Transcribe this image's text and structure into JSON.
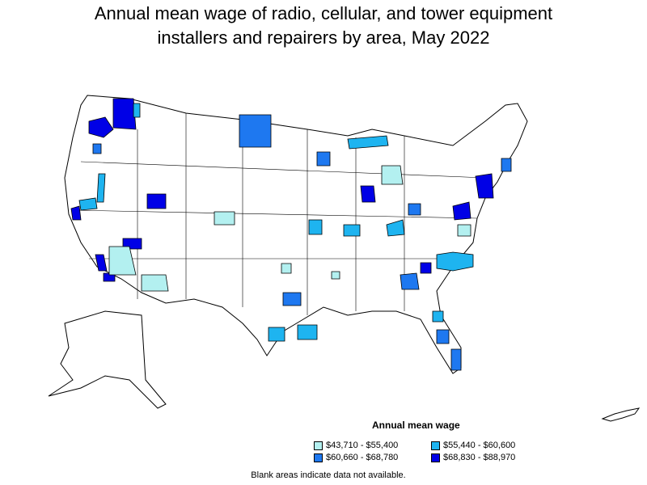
{
  "title": {
    "line1": "Annual mean wage of radio, cellular, and tower equipment",
    "line2": "installers and repairers by area, May 2022"
  },
  "legend": {
    "title": "Annual mean wage",
    "items": [
      {
        "label": "$43,710 - $55,400",
        "color": "#b3f0f0"
      },
      {
        "label": "$55,440 - $60,600",
        "color": "#1eb4f0"
      },
      {
        "label": "$60,660 - $68,780",
        "color": "#1e78f0"
      },
      {
        "label": "$68,830 - $88,970",
        "color": "#0000e6"
      }
    ]
  },
  "note": "Blank areas indicate data not available."
}
